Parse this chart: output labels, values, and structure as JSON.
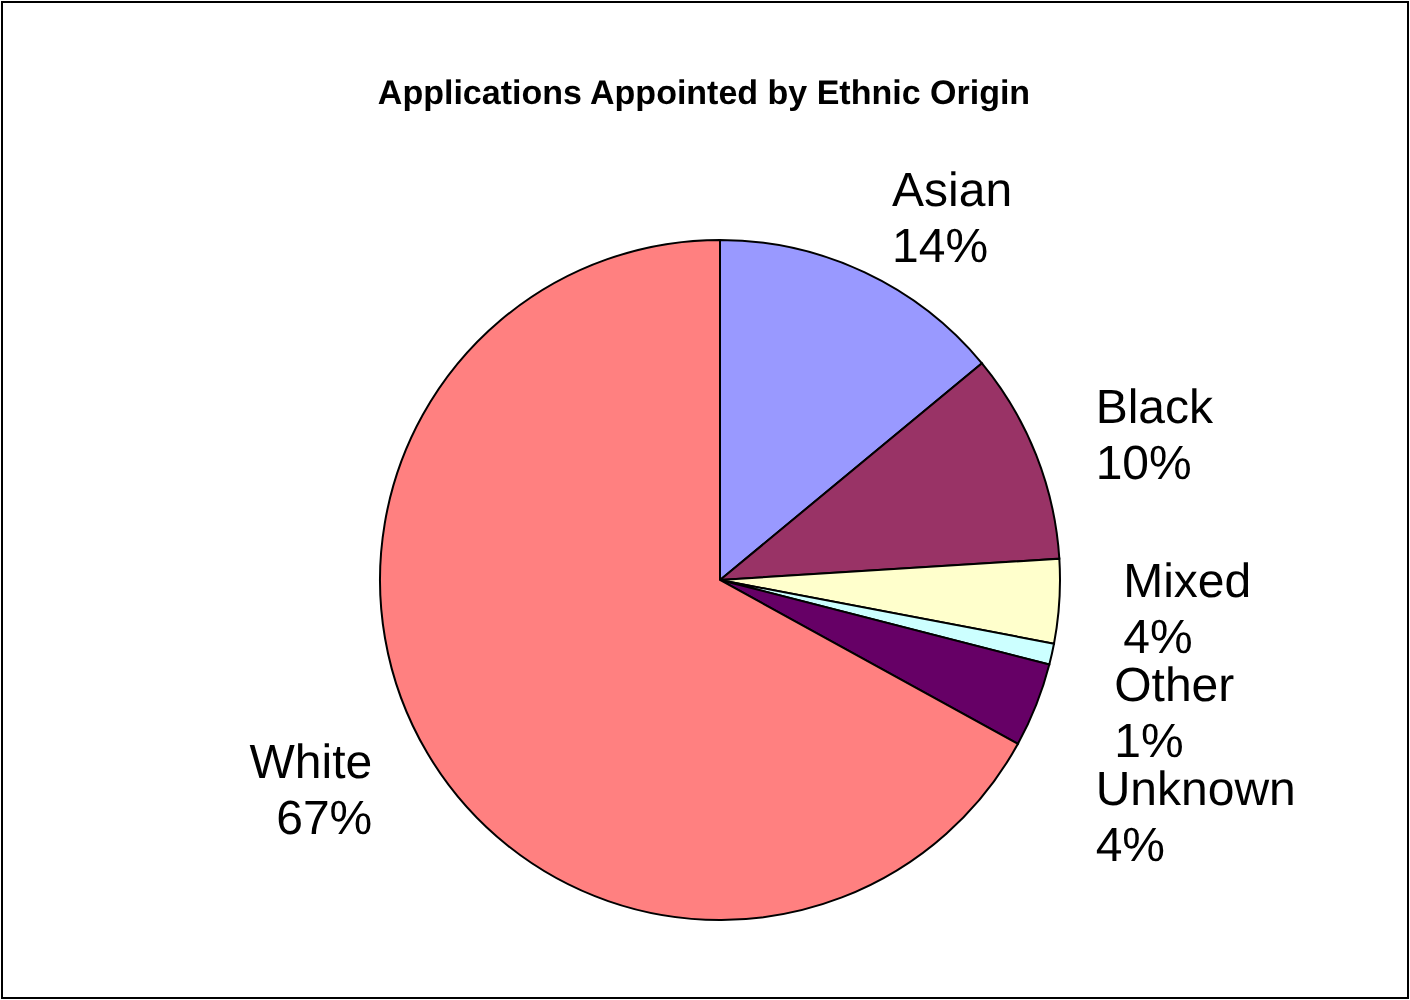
{
  "chart_data": {
    "type": "pie",
    "title": "Applications Appointed by Ethnic Origin",
    "categories": [
      "Asian",
      "Black",
      "Mixed",
      "Other",
      "Unknown",
      "White"
    ],
    "values": [
      14,
      10,
      4,
      1,
      4,
      67
    ],
    "colors": [
      "#9999ff",
      "#993366",
      "#ffffcc",
      "#ccffff",
      "#660066",
      "#ff8080"
    ],
    "value_labels": [
      "14%",
      "10%",
      "4%",
      "1%",
      "4%",
      "67%"
    ],
    "legend": false
  }
}
